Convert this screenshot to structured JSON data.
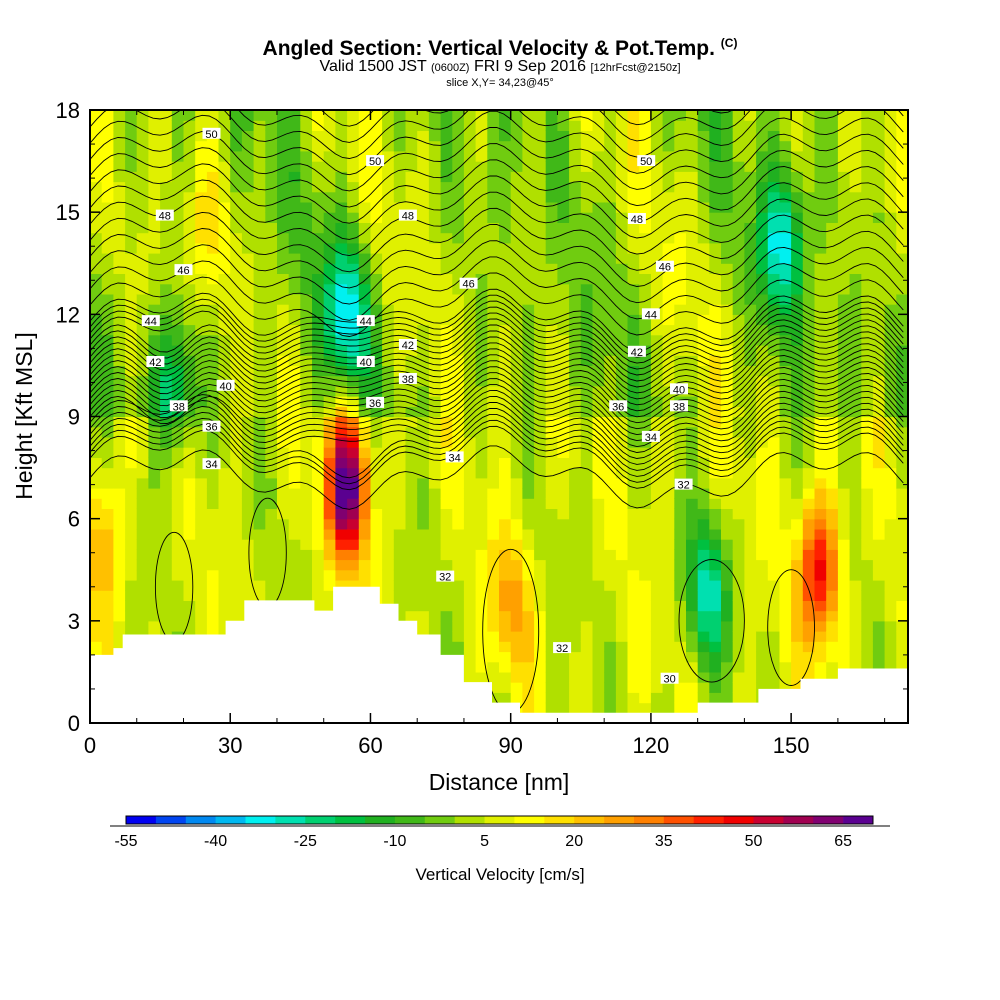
{
  "header": {
    "title_main": "Angled Section: Vertical Velocity & Pot.Temp.",
    "title_unit": "(C)",
    "subtitle_valid": "Valid 1500 JST",
    "subtitle_utc": "(0600Z)",
    "subtitle_date": "FRI 9 Sep 2016",
    "subtitle_fcst": "[12hrFcst@2150z]",
    "slice_info": "slice X,Y= 34,23@45°"
  },
  "chart_data": {
    "type": "heatmap",
    "title": "Angled Section: Vertical Velocity & Pot.Temp.",
    "xlabel": "Distance [nm]",
    "ylabel": "Height [Kft MSL]",
    "xlim": [
      0,
      175
    ],
    "ylim": [
      0,
      18
    ],
    "x_ticks": [
      0,
      30,
      60,
      90,
      120,
      150
    ],
    "y_ticks": [
      0,
      3,
      6,
      9,
      12,
      15,
      18
    ],
    "grid": false,
    "colorbar": {
      "label": "Vertical Velocity [cm/s]",
      "tick_labels": [
        "-55",
        "-40",
        "-25",
        "-10",
        "5",
        "20",
        "35",
        "50",
        "65"
      ],
      "range": [
        -55,
        70
      ],
      "step": 5,
      "colors": [
        "#0000f0",
        "#0044f0",
        "#0088f0",
        "#00b8f0",
        "#00f0f0",
        "#00e0b0",
        "#00d070",
        "#00c040",
        "#20b020",
        "#40b818",
        "#70cc10",
        "#b0e000",
        "#e0f000",
        "#ffff00",
        "#ffe000",
        "#ffc000",
        "#ffa000",
        "#ff8000",
        "#ff5000",
        "#ff2000",
        "#f00000",
        "#c80030",
        "#a00050",
        "#800070",
        "#5a0090"
      ]
    },
    "isentrope_labels": [
      {
        "x": 26,
        "y": 17.3,
        "text": "50"
      },
      {
        "x": 61,
        "y": 16.5,
        "text": "50"
      },
      {
        "x": 119,
        "y": 16.5,
        "text": "50"
      },
      {
        "x": 16,
        "y": 14.9,
        "text": "48"
      },
      {
        "x": 68,
        "y": 14.9,
        "text": "48"
      },
      {
        "x": 117,
        "y": 14.8,
        "text": "48"
      },
      {
        "x": 20,
        "y": 13.3,
        "text": "46"
      },
      {
        "x": 81,
        "y": 12.9,
        "text": "46"
      },
      {
        "x": 123,
        "y": 13.4,
        "text": "46"
      },
      {
        "x": 13,
        "y": 11.8,
        "text": "44"
      },
      {
        "x": 59,
        "y": 11.8,
        "text": "44"
      },
      {
        "x": 120,
        "y": 12.0,
        "text": "44"
      },
      {
        "x": 14,
        "y": 10.6,
        "text": "42"
      },
      {
        "x": 68,
        "y": 11.1,
        "text": "42"
      },
      {
        "x": 117,
        "y": 10.9,
        "text": "42"
      },
      {
        "x": 29,
        "y": 9.9,
        "text": "40"
      },
      {
        "x": 59,
        "y": 10.6,
        "text": "40"
      },
      {
        "x": 126,
        "y": 9.8,
        "text": "40"
      },
      {
        "x": 19,
        "y": 9.3,
        "text": "38"
      },
      {
        "x": 68,
        "y": 10.1,
        "text": "38"
      },
      {
        "x": 126,
        "y": 9.3,
        "text": "38"
      },
      {
        "x": 26,
        "y": 8.7,
        "text": "36"
      },
      {
        "x": 61,
        "y": 9.4,
        "text": "36"
      },
      {
        "x": 113,
        "y": 9.3,
        "text": "36"
      },
      {
        "x": 26,
        "y": 7.6,
        "text": "34"
      },
      {
        "x": 78,
        "y": 7.8,
        "text": "34"
      },
      {
        "x": 120,
        "y": 8.4,
        "text": "34"
      },
      {
        "x": 127,
        "y": 7.0,
        "text": "32"
      },
      {
        "x": 76,
        "y": 4.3,
        "text": "32"
      },
      {
        "x": 101,
        "y": 2.2,
        "text": "32"
      },
      {
        "x": 124,
        "y": 1.3,
        "text": "30"
      }
    ],
    "terrain": [
      [
        0,
        2.0
      ],
      [
        5,
        2.2
      ],
      [
        7,
        2.6
      ],
      [
        22,
        2.6
      ],
      [
        26,
        2.6
      ],
      [
        29,
        3.0
      ],
      [
        33,
        3.6
      ],
      [
        42,
        3.6
      ],
      [
        48,
        3.3
      ],
      [
        52,
        4.0
      ],
      [
        58,
        4.0
      ],
      [
        62,
        3.5
      ],
      [
        66,
        3.0
      ],
      [
        70,
        2.6
      ],
      [
        75,
        2.0
      ],
      [
        80,
        1.2
      ],
      [
        86,
        0.6
      ],
      [
        92,
        0.3
      ],
      [
        120,
        0.3
      ],
      [
        130,
        0.6
      ],
      [
        143,
        1.0
      ],
      [
        152,
        1.3
      ],
      [
        160,
        1.6
      ],
      [
        175,
        1.6
      ]
    ],
    "updraft_cores": [
      {
        "x": 55,
        "y": 7.0,
        "value": 67
      },
      {
        "x": 156,
        "y": 4.5,
        "value": 48
      },
      {
        "x": 3,
        "y": 5.4,
        "value": 25
      },
      {
        "x": 90,
        "y": 3.5,
        "value": 25
      },
      {
        "x": 25,
        "y": 14.5,
        "value": 18
      }
    ],
    "downdraft_cores": [
      {
        "x": 55,
        "y": 12.0,
        "value": -25
      },
      {
        "x": 132,
        "y": 3.8,
        "value": -25
      },
      {
        "x": 18,
        "y": 9.8,
        "value": -20
      },
      {
        "x": 148,
        "y": 14.0,
        "value": -25
      }
    ]
  }
}
